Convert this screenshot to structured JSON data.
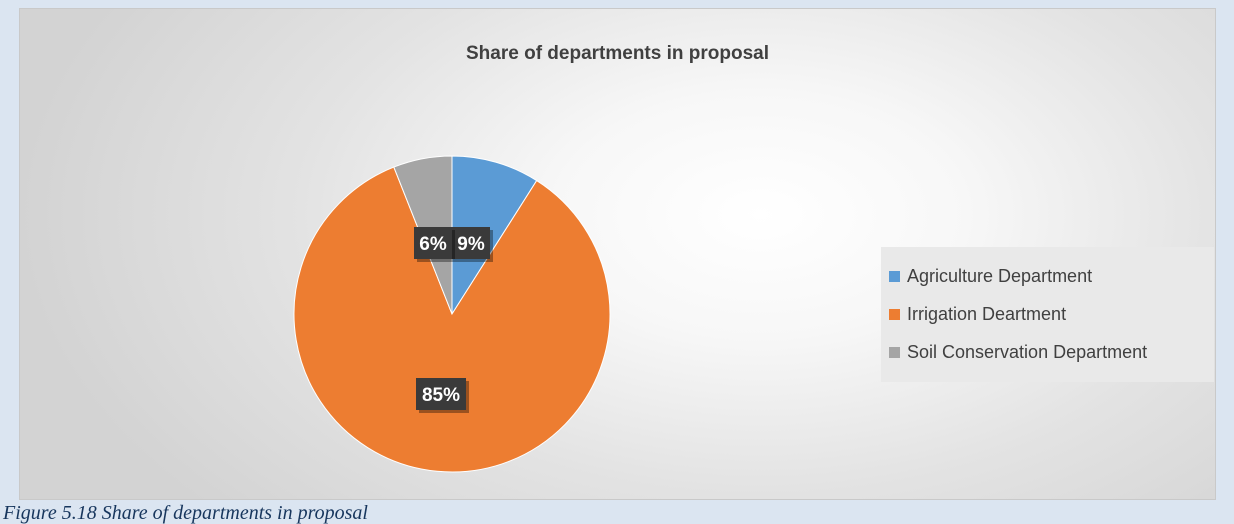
{
  "chart_data": {
    "type": "pie",
    "title": "Share of departments in proposal",
    "categories": [
      "Agriculture Department",
      "Irrigation Deartment",
      "Soil Conservation Department"
    ],
    "values": [
      9,
      85,
      6
    ],
    "labels": [
      "9%",
      "85%",
      "6%"
    ],
    "colors": [
      "#5b9bd5",
      "#ed7d31",
      "#a5a5a5"
    ],
    "legend": "right"
  },
  "caption": "Figure 5.18 Share of departments in proposal"
}
